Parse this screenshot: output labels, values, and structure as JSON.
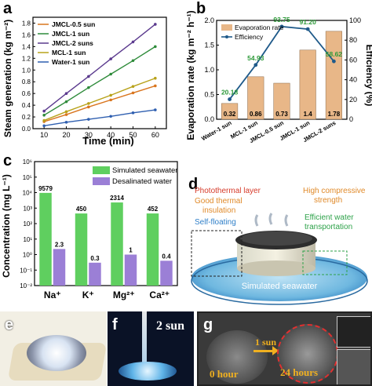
{
  "panel_labels": {
    "a": "a",
    "b": "b",
    "c": "c",
    "d": "d",
    "e": "e",
    "f": "f",
    "g": "g"
  },
  "chart_data": [
    {
      "type": "line",
      "panel": "a",
      "xlabel": "Time (min)",
      "ylabel": "Steam generation (kg m⁻²)",
      "xlim": [
        5,
        65
      ],
      "ylim": [
        0.0,
        1.9
      ],
      "xticks": [
        "10",
        "20",
        "30",
        "40",
        "50",
        "60"
      ],
      "yticks": [
        "0.0",
        "0.2",
        "0.4",
        "0.6",
        "0.8",
        "1.0",
        "1.2",
        "1.4",
        "1.6",
        "1.8"
      ],
      "x": [
        10,
        20,
        30,
        40,
        50,
        60
      ],
      "series": [
        {
          "name": "JMCL-0.5 sun",
          "color": "#d9751e",
          "values": [
            0.12,
            0.24,
            0.37,
            0.49,
            0.61,
            0.73
          ]
        },
        {
          "name": "JMCL-1 sun",
          "color": "#2e8b3a",
          "values": [
            0.23,
            0.46,
            0.7,
            0.93,
            1.16,
            1.4
          ]
        },
        {
          "name": "JMCL-2 suns",
          "color": "#5b3a8e",
          "values": [
            0.3,
            0.6,
            0.89,
            1.19,
            1.48,
            1.78
          ]
        },
        {
          "name": "MCL-1 sun",
          "color": "#b8a21a",
          "values": [
            0.14,
            0.29,
            0.43,
            0.57,
            0.72,
            0.86
          ]
        },
        {
          "name": "Water-1 sun",
          "color": "#2f5fb0",
          "values": [
            0.05,
            0.11,
            0.16,
            0.21,
            0.27,
            0.32
          ]
        }
      ]
    },
    {
      "type": "bar",
      "panel": "b",
      "categories": [
        "Water-1 sun",
        "MCL-1 sun",
        "JMCL-0.5 sun",
        "JMCL-1 sun",
        "JMCL-2 suns"
      ],
      "values": [
        0.32,
        0.86,
        0.73,
        1.4,
        1.78
      ],
      "value_labels": [
        "0.32",
        "0.86",
        "0.73",
        "1.4",
        "1.78"
      ],
      "efficiency": [
        20.18,
        54.93,
        93.75,
        91.2,
        58.62
      ],
      "efficiency_labels": [
        "20.18",
        "54.93",
        "93.75",
        "91.20",
        "58.62"
      ],
      "ylabel": "Evaporation rate (kg m⁻² h⁻¹)",
      "y2label": "Efficiency (%)",
      "ylim": [
        0.0,
        2.0
      ],
      "y2lim": [
        0,
        100
      ],
      "yticks": [
        "0.0",
        "0.5",
        "1.0",
        "1.5",
        "2.0"
      ],
      "y2ticks": [
        "0",
        "20",
        "40",
        "60",
        "80",
        "100"
      ],
      "legend": [
        "Evaporation rate",
        "Efficiency"
      ],
      "bar_color": "#e8b788",
      "line_color": "#1f5a8a",
      "label_color": "#2e9a3a"
    },
    {
      "type": "bar",
      "panel": "c",
      "categories": [
        "Na⁺",
        "K⁺",
        "Mg²⁺",
        "Ca²⁺"
      ],
      "series": [
        {
          "name": "Simulated seawater",
          "color": "#5fcf5f",
          "values": [
            9579,
            450,
            2314,
            452
          ],
          "labels": [
            "9579",
            "450",
            "2314",
            "452"
          ]
        },
        {
          "name": "Desalinated water",
          "color": "#9b7fd6",
          "values": [
            2.3,
            0.3,
            1,
            0.4
          ],
          "labels": [
            "2.3",
            "0.3",
            "1",
            "0.4"
          ]
        }
      ],
      "ylabel": "Concentration (mg L⁻¹)",
      "scale": "log",
      "ylim_exp": [
        -2,
        6
      ],
      "yticks": [
        "10⁻²",
        "10⁻¹",
        "10⁰",
        "10¹",
        "10²",
        "10³",
        "10⁴",
        "10⁵",
        "10⁶"
      ]
    }
  ],
  "diagram_d": {
    "photothermal": "Photothermal layer",
    "insulation_1": "Good thermal",
    "insulation_2": "insulation",
    "floating": "Self-floating",
    "compressive_1": "High compressive",
    "compressive_2": "strength",
    "transport_1": "Efficient water",
    "transport_2": "transportation",
    "seawater": "Simulated seawater",
    "colors": {
      "red": "#d63a2a",
      "orange": "#e08a2a",
      "blue": "#2f7fc8",
      "green": "#2ea24a"
    }
  },
  "photo_f": {
    "label": "2 sun"
  },
  "photo_g": {
    "arrow_label": "1 sun",
    "time_start": "0 hour",
    "time_end": "24 hours"
  }
}
